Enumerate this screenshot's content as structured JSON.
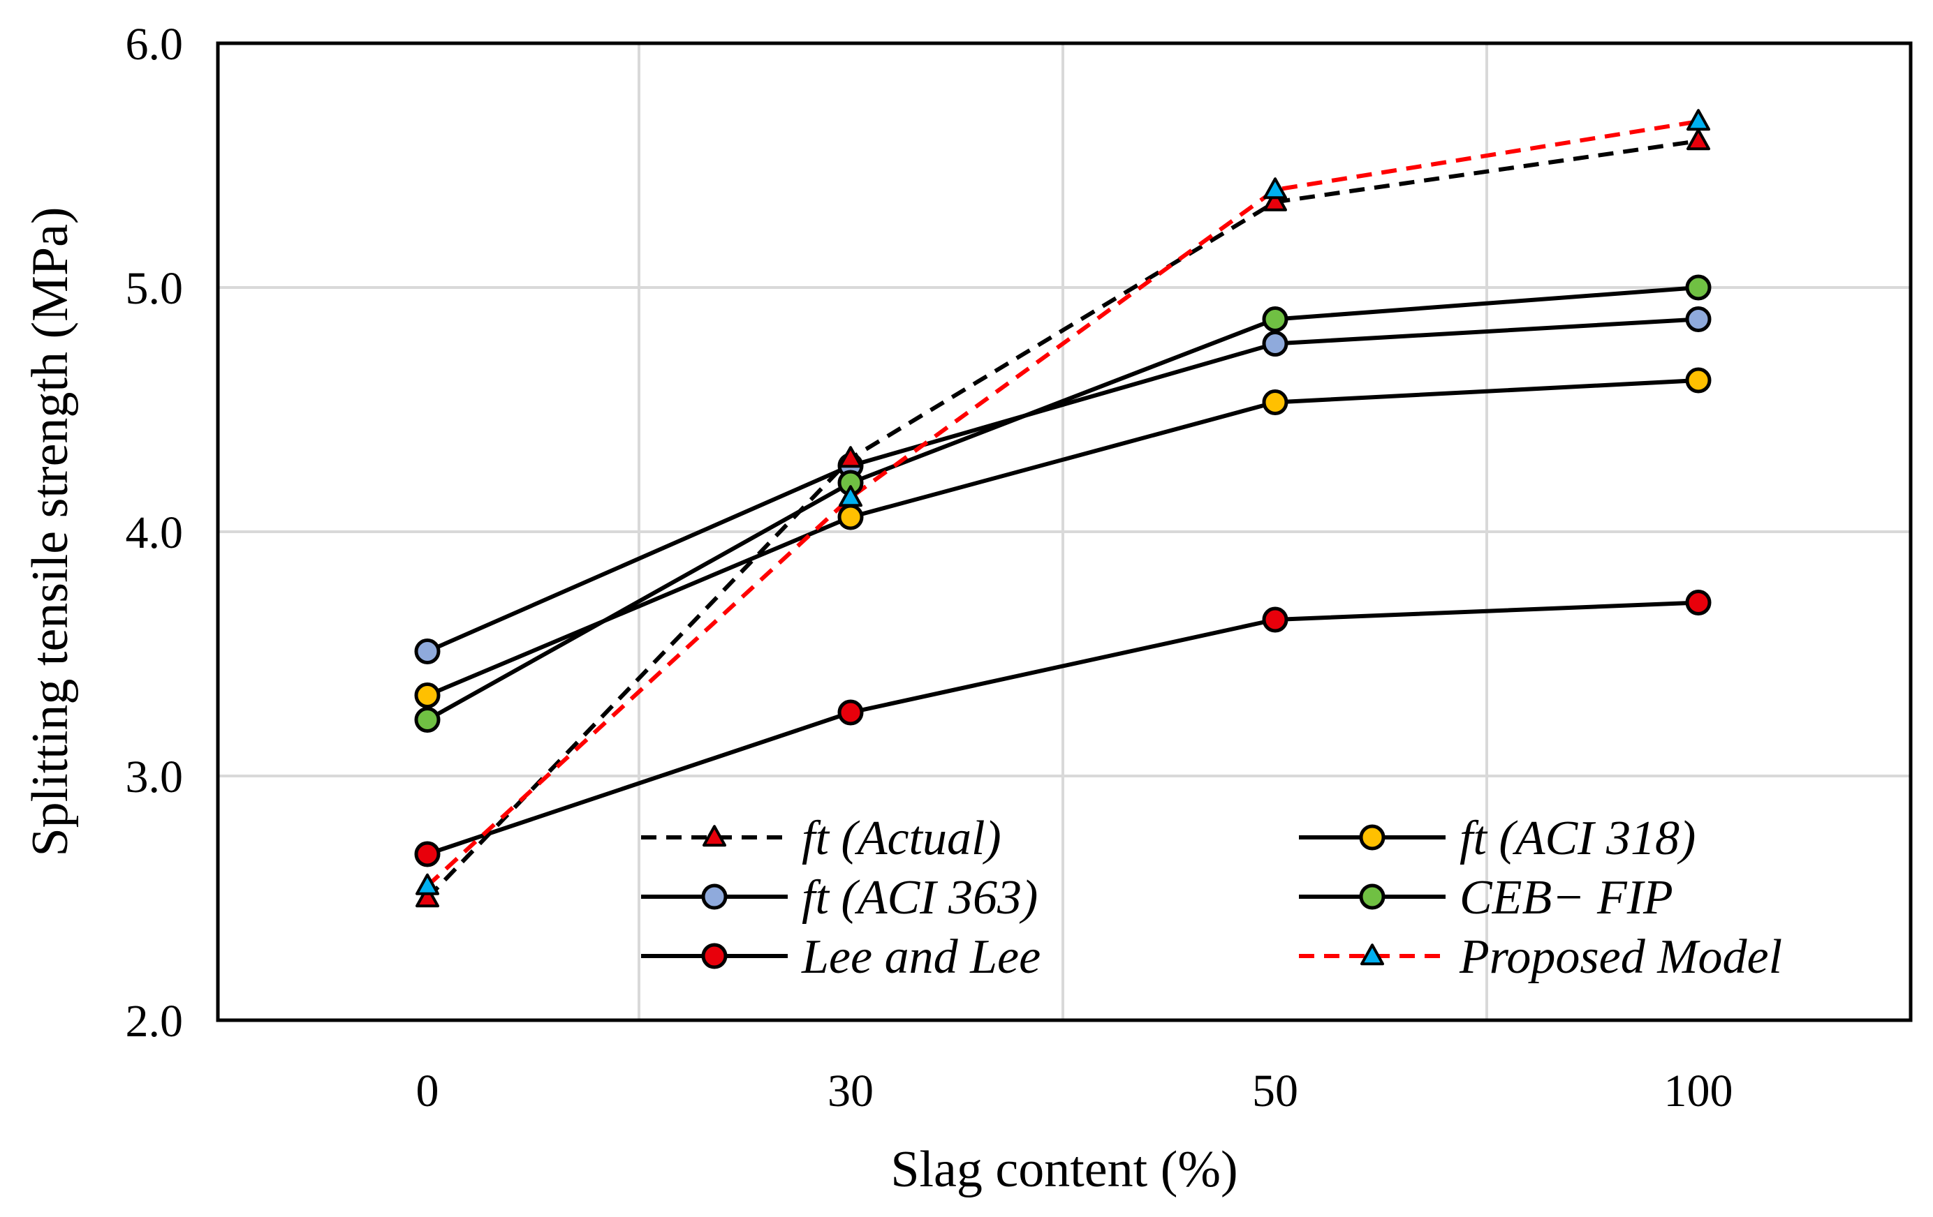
{
  "chart_data": {
    "type": "line",
    "title": "",
    "xlabel": "Slag content (%)",
    "ylabel": "Splitting tensile strength (MPa)",
    "categories": [
      "0",
      "30",
      "50",
      "100"
    ],
    "ylim": [
      2.0,
      6.0
    ],
    "yticks": [
      "2.0",
      "3.0",
      "4.0",
      "5.0",
      "6.0"
    ],
    "grid": true,
    "legend_position": "bottom-center inside plot",
    "series": [
      {
        "name": "ft (Actual)",
        "values": [
          2.5,
          4.3,
          5.35,
          5.6
        ],
        "color": "#000000",
        "dash": true,
        "marker": "triangle",
        "marker_color": "#e8000b"
      },
      {
        "name": "ft (ACI 318)",
        "values": [
          3.33,
          4.06,
          4.53,
          4.62
        ],
        "color": "#000000",
        "dash": false,
        "marker": "circle",
        "marker_color": "#ffc000"
      },
      {
        "name": "ft (ACI 363)",
        "values": [
          3.51,
          4.27,
          4.77,
          4.87
        ],
        "color": "#000000",
        "dash": false,
        "marker": "circle",
        "marker_color": "#8faadc"
      },
      {
        "name": "CEB− FIP",
        "values": [
          3.23,
          4.2,
          4.87,
          5.0
        ],
        "color": "#000000",
        "dash": false,
        "marker": "circle",
        "marker_color": "#70c043"
      },
      {
        "name": "Lee and Lee",
        "values": [
          2.68,
          3.26,
          3.64,
          3.71
        ],
        "color": "#000000",
        "dash": false,
        "marker": "circle",
        "marker_color": "#e8000b"
      },
      {
        "name": "Proposed Model",
        "values": [
          2.55,
          4.14,
          5.4,
          5.68
        ],
        "color": "#ff0000",
        "dash": true,
        "marker": "triangle",
        "marker_color": "#00b0f0"
      }
    ]
  }
}
